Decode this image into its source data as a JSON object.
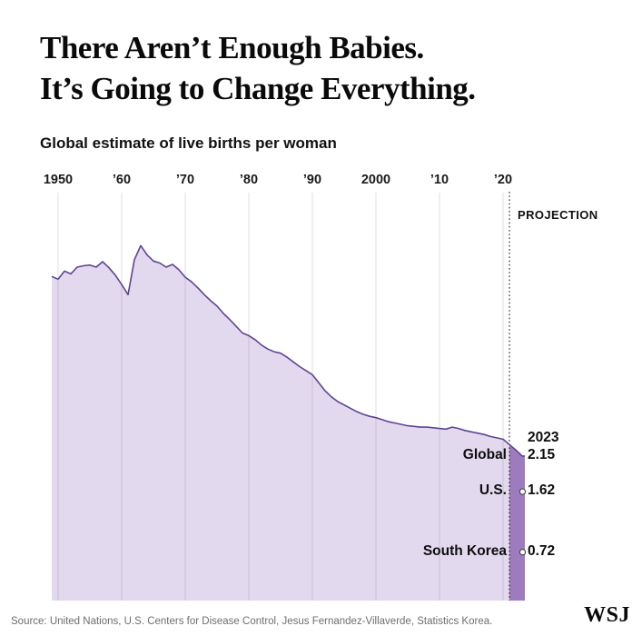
{
  "header": {
    "title_line1": "There Aren’t Enough Babies.",
    "title_line2": "It’s Going to Change Everything.",
    "subtitle": "Global estimate of live births per woman"
  },
  "chart_data": {
    "type": "area",
    "title": "Global estimate of live births per woman",
    "xlabel": "",
    "ylabel": "live births per woman",
    "ylim": [
      0,
      6.1
    ],
    "grid": "vertical",
    "x_start_year": 1949,
    "x_end_year": 2023,
    "x_tick_years": [
      1950,
      1960,
      1970,
      1980,
      1990,
      2000,
      2010,
      2020
    ],
    "x_tick_labels": [
      "1950",
      "’60",
      "’70",
      "’80",
      "’90",
      "2000",
      "’10",
      "’20"
    ],
    "projection_start_year": 2021,
    "projection_label": "PROJECTION",
    "series": [
      {
        "name": "Global",
        "years_range": [
          1949,
          2023
        ],
        "values": [
          4.82,
          4.78,
          4.9,
          4.86,
          4.96,
          4.98,
          4.99,
          4.96,
          5.04,
          4.95,
          4.84,
          4.7,
          4.55,
          5.07,
          5.28,
          5.14,
          5.05,
          5.02,
          4.96,
          5.0,
          4.92,
          4.81,
          4.74,
          4.65,
          4.55,
          4.46,
          4.38,
          4.27,
          4.18,
          4.08,
          3.98,
          3.94,
          3.88,
          3.8,
          3.74,
          3.7,
          3.68,
          3.62,
          3.55,
          3.48,
          3.42,
          3.36,
          3.24,
          3.12,
          3.03,
          2.96,
          2.91,
          2.86,
          2.81,
          2.77,
          2.74,
          2.72,
          2.69,
          2.66,
          2.64,
          2.62,
          2.6,
          2.59,
          2.58,
          2.58,
          2.57,
          2.56,
          2.55,
          2.58,
          2.56,
          2.53,
          2.51,
          2.49,
          2.47,
          2.44,
          2.42,
          2.4,
          2.32,
          2.24,
          2.15
        ]
      }
    ],
    "end_labels": {
      "year_label": "2023",
      "items": [
        {
          "label": "Global",
          "value": "2.15",
          "marker": false
        },
        {
          "label": "U.S.",
          "value": "1.62",
          "marker": true
        },
        {
          "label": "South Korea",
          "value": "0.72",
          "marker": true
        }
      ]
    },
    "colors": {
      "area_fill": "#e3d9ef",
      "projection_fill": "#9d7cbe",
      "line": "#5e4590",
      "gridline": "#d9d9d9",
      "dotted_line": "#1a1a1a",
      "marker_fill": "#ffffff",
      "marker_stroke": "#4d4d4d"
    }
  },
  "footer": {
    "source": "Source: United Nations, U.S. Centers for Disease Control, Jesus Fernandez-Villaverde, Statistics Korea.",
    "logo": "WSJ"
  }
}
